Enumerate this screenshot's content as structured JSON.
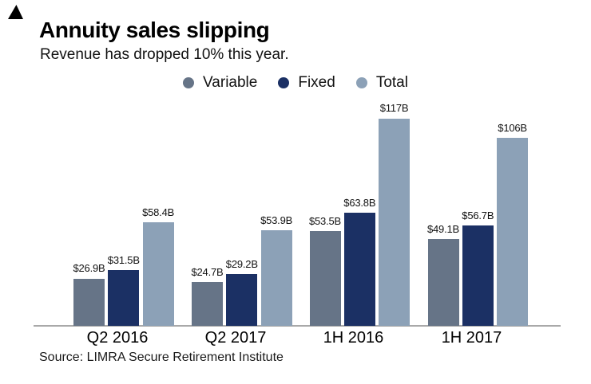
{
  "icons": {
    "brand_logo": "triangle-logo"
  },
  "header": {
    "title": "Annuity sales slipping",
    "subtitle": "Revenue has dropped 10% this year."
  },
  "legend": {
    "items": [
      {
        "label": "Variable",
        "color": "#667487"
      },
      {
        "label": "Fixed",
        "color": "#1B3064"
      },
      {
        "label": "Total",
        "color": "#8CA1B7"
      }
    ]
  },
  "chart_data": {
    "type": "bar",
    "categories": [
      "Q2 2016",
      "Q2 2017",
      "1H 2016",
      "1H 2017"
    ],
    "series": [
      {
        "name": "Variable",
        "color": "#667487",
        "values": [
          26.9,
          24.7,
          53.5,
          49.1
        ],
        "value_labels": [
          "$26.9B",
          "$24.7B",
          "$53.5B",
          "$49.1B"
        ]
      },
      {
        "name": "Fixed",
        "color": "#1B3064",
        "values": [
          31.5,
          29.2,
          63.8,
          56.7
        ],
        "value_labels": [
          "$31.5B",
          "$29.2B",
          "$63.8B",
          "$56.7B"
        ]
      },
      {
        "name": "Total",
        "color": "#8CA1B7",
        "values": [
          58.4,
          53.9,
          117,
          106
        ],
        "value_labels": [
          "$58.4B",
          "$53.9B",
          "$117B",
          "$106B"
        ]
      }
    ],
    "title": "Annuity sales slipping",
    "subtitle": "Revenue has dropped 10% this year.",
    "xlabel": "",
    "ylabel": "",
    "unit": "USD billions",
    "ylim": [
      0,
      120
    ],
    "grid": false,
    "y_axis_shown": false,
    "legend_position": "top-center"
  },
  "source": {
    "label": "Source: LIMRA Secure Retirement Institute"
  },
  "colors": {
    "axis_line": "#A9A9A9",
    "background": "#FFFFFF",
    "text": "#000000"
  }
}
